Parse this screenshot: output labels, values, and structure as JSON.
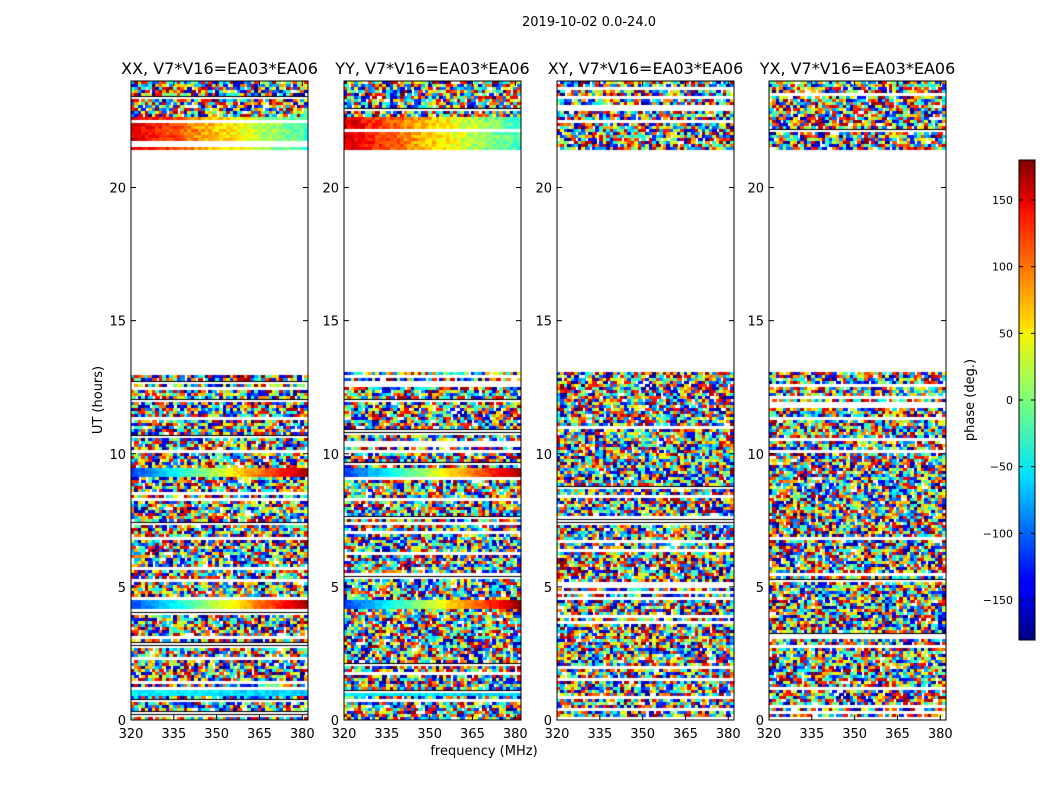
{
  "chart_data": {
    "type": "heatmap",
    "suptitle": "2019-10-02 0.0-24.0",
    "xlabel": "frequency (MHz)",
    "ylabel": "UT (hours)",
    "xlim": [
      320,
      382
    ],
    "ylim": [
      0,
      24
    ],
    "xticks": [
      320,
      335,
      350,
      365,
      380
    ],
    "yticks": [
      0,
      5,
      10,
      15,
      20
    ],
    "colorbar": {
      "label": "phase (deg.)",
      "range": [
        -180,
        180
      ],
      "ticks": [
        150,
        100,
        50,
        0,
        -50,
        -100,
        -150
      ],
      "tick_labels": [
        "150",
        "100",
        "50",
        "0",
        "−50",
        "−100",
        "−150"
      ],
      "colormap": "jet"
    },
    "panels": [
      {
        "title": "XX, V7*V16=EA03*EA06",
        "polarization": "XX",
        "coherent": true
      },
      {
        "title": "YY, V7*V16=EA03*EA06",
        "polarization": "YY",
        "coherent": true
      },
      {
        "title": "XY, V7*V16=EA03*EA06",
        "polarization": "XY",
        "coherent": false
      },
      {
        "title": "YX, V7*V16=EA03*EA06",
        "polarization": "YX",
        "coherent": false
      }
    ],
    "data_ranges_ut_hours": [
      [
        0.0,
        13.1
      ],
      [
        21.4,
        24.0
      ]
    ],
    "blank_gap_ut_hours": [
      13.1,
      21.4
    ],
    "notable_features": [
      {
        "ut": 1.0,
        "description": "cyan-green band in XX/YY"
      },
      {
        "ut": 4.3,
        "description": "blue to red phase band in XX/YY"
      },
      {
        "ut": 9.3,
        "description": "blue to red phase band in XX/YY"
      },
      {
        "ut": 22.0,
        "description": "red-orange to yellow-green banded block in XX/YY"
      }
    ]
  }
}
